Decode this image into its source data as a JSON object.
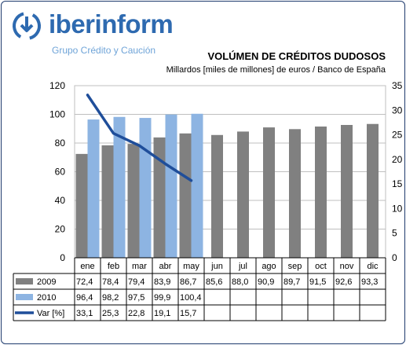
{
  "brand": {
    "name_part1": "iber",
    "name_part2": "inform",
    "subtitle": "Grupo Crédito y Caución",
    "accent": "#2e6ab0",
    "icon": "refresh-arrows-icon"
  },
  "chart_data": {
    "type": "bar",
    "title": "VOLÚMEN DE CRÉDITOS DUDOSOS",
    "subtitle": "Millardos [miles de millones] de euros / Banco de España",
    "categories": [
      "ene",
      "feb",
      "mar",
      "abr",
      "may",
      "jun",
      "jul",
      "ago",
      "sep",
      "oct",
      "nov",
      "dic"
    ],
    "series": [
      {
        "name": "2009",
        "type": "bar",
        "axis": "left",
        "color": "#808080",
        "values": [
          72.4,
          78.4,
          79.4,
          83.9,
          86.7,
          85.6,
          88.0,
          90.9,
          89.7,
          91.5,
          92.6,
          93.3
        ],
        "labels": [
          "72,4",
          "78,4",
          "79,4",
          "83,9",
          "86,7",
          "85,6",
          "88,0",
          "90,9",
          "89,7",
          "91,5",
          "92,6",
          "93,3"
        ]
      },
      {
        "name": "2010",
        "type": "bar",
        "axis": "left",
        "color": "#8db4e2",
        "values": [
          96.4,
          98.2,
          97.5,
          99.9,
          100.4,
          null,
          null,
          null,
          null,
          null,
          null,
          null
        ],
        "labels": [
          "96,4",
          "98,2",
          "97,5",
          "99,9",
          "100,4",
          "",
          "",
          "",
          "",
          "",
          "",
          ""
        ]
      },
      {
        "name": "Var [%]",
        "type": "line",
        "axis": "right",
        "color": "#1f4e9a",
        "values": [
          33.1,
          25.3,
          22.8,
          19.1,
          15.7,
          null,
          null,
          null,
          null,
          null,
          null,
          null
        ],
        "labels": [
          "33,1",
          "25,3",
          "22,8",
          "19,1",
          "15,7",
          "",
          "",
          "",
          "",
          "",
          "",
          ""
        ]
      }
    ],
    "y_left": {
      "min": 0,
      "max": 120,
      "ticks": [
        0,
        20,
        40,
        60,
        80,
        100,
        120
      ]
    },
    "y_right": {
      "min": 0,
      "max": 35,
      "ticks": [
        0,
        5,
        10,
        15,
        20,
        25,
        30,
        35
      ]
    },
    "grid": "horizontal",
    "legend": "data-table"
  }
}
